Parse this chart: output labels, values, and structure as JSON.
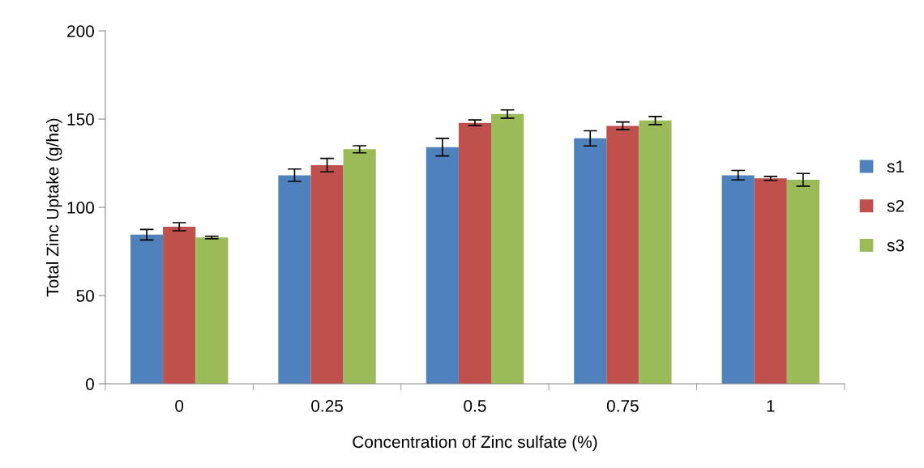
{
  "chart_data": {
    "type": "bar",
    "xlabel": "Concentration of Zinc sulfate (%)",
    "ylabel": "Total Zinc Uptake (g/ha)",
    "categories": [
      "0",
      "0.25",
      "0.5",
      "0.75",
      "1"
    ],
    "series": [
      {
        "name": "s1",
        "color": "#4f81bd",
        "values": [
          84.5,
          118.2,
          134.1,
          139.1,
          118.2
        ],
        "errors": [
          3,
          3.5,
          5,
          4.3,
          2.7
        ]
      },
      {
        "name": "s2",
        "color": "#c0504d",
        "values": [
          89,
          123.9,
          147.9,
          146.2,
          116.4
        ],
        "errors": [
          2.3,
          3.8,
          1.6,
          2.2,
          1.1
        ]
      },
      {
        "name": "s3",
        "color": "#9bbb59",
        "values": [
          82.9,
          132.9,
          152.9,
          149.2,
          115.6
        ],
        "errors": [
          0.7,
          2,
          2.3,
          2.3,
          3.6
        ]
      }
    ],
    "ylim": [
      0,
      200
    ],
    "yticks": [
      0,
      50,
      100,
      150,
      200
    ],
    "grid": false,
    "legend": "right"
  }
}
